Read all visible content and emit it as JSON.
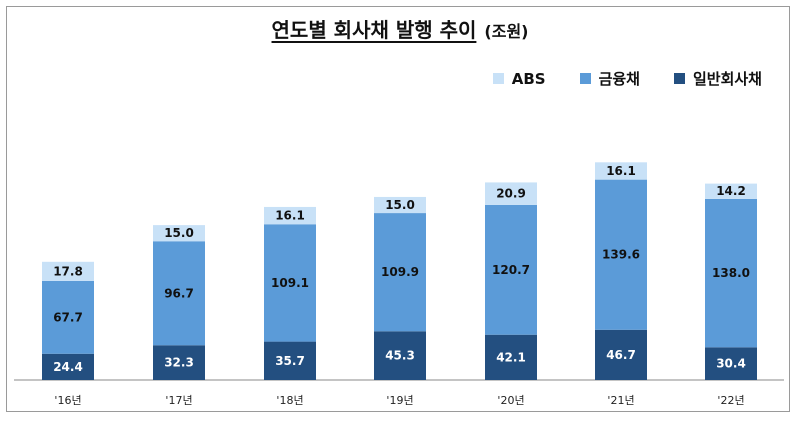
{
  "chart_data": {
    "type": "bar",
    "stacked": true,
    "title": "연도별 회사채 발행 추이",
    "unit": "(조원)",
    "categories": [
      "'16년",
      "'17년",
      "'18년",
      "'19년",
      "'20년",
      "'21년",
      "'22년"
    ],
    "series": [
      {
        "name": "일반회사채",
        "color": "#234f80",
        "label_color": "#ffffff",
        "values": [
          24.4,
          32.3,
          35.7,
          45.3,
          42.1,
          46.7,
          30.4
        ]
      },
      {
        "name": "금융채",
        "color": "#5b9bd8",
        "label_color": "#111111",
        "values": [
          67.7,
          96.7,
          109.1,
          109.9,
          120.7,
          139.6,
          138.0
        ]
      },
      {
        "name": "ABS",
        "color": "#c8e1f7",
        "label_color": "#111111",
        "values": [
          17.8,
          15.0,
          16.1,
          15.0,
          20.9,
          16.1,
          14.2
        ]
      }
    ],
    "legend_order": [
      "ABS",
      "금융채",
      "일반회사채"
    ],
    "legend_position": "top-right",
    "grid": false,
    "ylim": [
      0,
      225
    ]
  }
}
